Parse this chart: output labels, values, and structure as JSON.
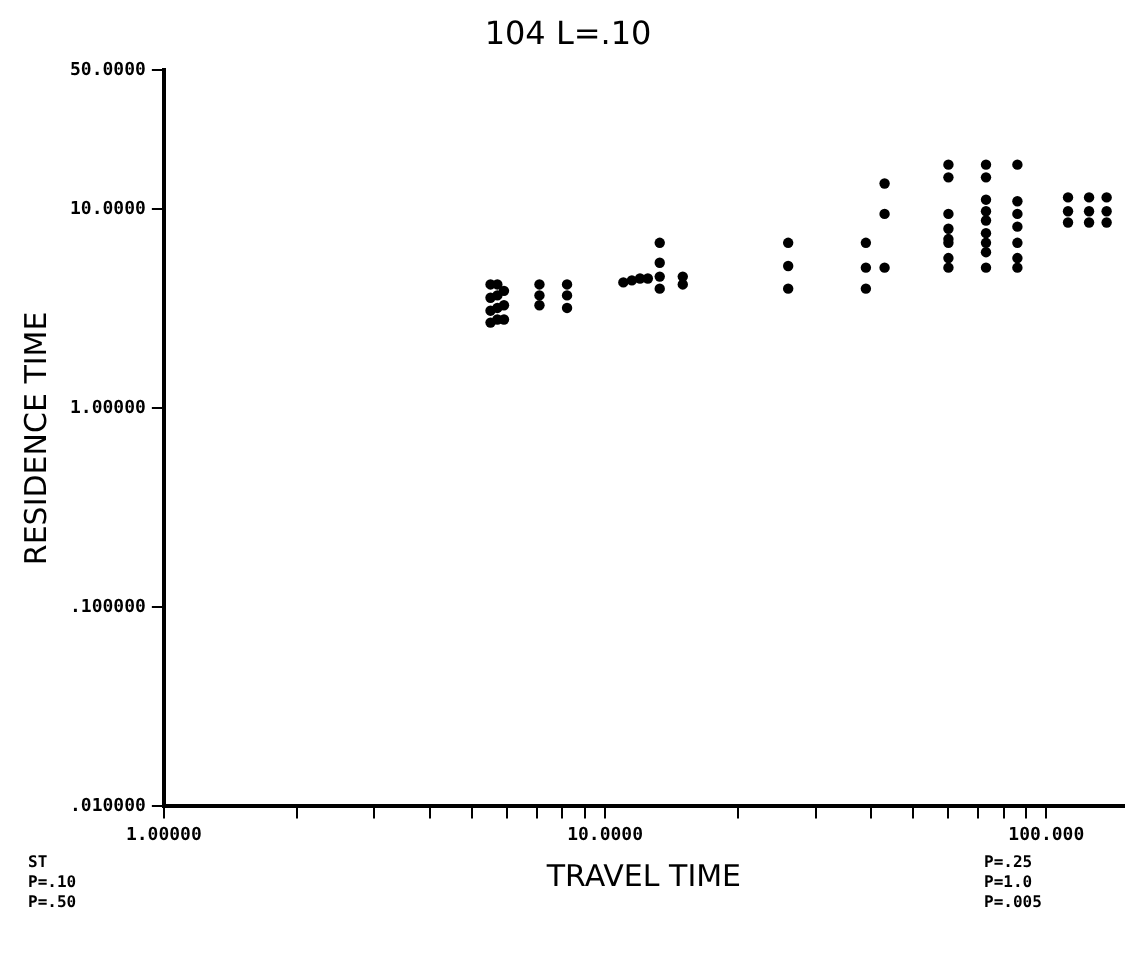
{
  "chart_data": {
    "type": "scatter",
    "title": "104 L=.10",
    "xlabel": "TRAVEL TIME",
    "ylabel": "RESIDENCE TIME",
    "log": "xy",
    "grid": false,
    "marker": "circle",
    "legend": false,
    "xlim": [
      1,
      150
    ],
    "ylim": [
      0.01,
      50
    ],
    "xticks": [
      {
        "value": 1,
        "label": "1.00000"
      },
      {
        "value": 2,
        "label": null
      },
      {
        "value": 3,
        "label": null
      },
      {
        "value": 4,
        "label": null
      },
      {
        "value": 5,
        "label": null
      },
      {
        "value": 6,
        "label": null
      },
      {
        "value": 7,
        "label": null
      },
      {
        "value": 8,
        "label": null
      },
      {
        "value": 9,
        "label": null
      },
      {
        "value": 10,
        "label": "10.0000"
      },
      {
        "value": 20,
        "label": null
      },
      {
        "value": 30,
        "label": null
      },
      {
        "value": 40,
        "label": null
      },
      {
        "value": 50,
        "label": null
      },
      {
        "value": 60,
        "label": null
      },
      {
        "value": 70,
        "label": null
      },
      {
        "value": 80,
        "label": null
      },
      {
        "value": 90,
        "label": null
      },
      {
        "value": 100,
        "label": "100.000"
      }
    ],
    "yticks": [
      {
        "value": 0.01,
        "label": ".010000"
      },
      {
        "value": 0.1,
        "label": ".100000"
      },
      {
        "value": 1,
        "label": "1.00000"
      },
      {
        "value": 10,
        "label": "10.0000"
      },
      {
        "value": 50,
        "label": "50.0000"
      }
    ],
    "annotations": [
      "ST",
      "P=.10",
      "P=.50",
      "P=.25",
      "P=1.0",
      "P=.005"
    ],
    "series": [
      {
        "color": "#000000",
        "x": [
          5.5,
          5.5,
          5.5,
          5.5,
          5.7,
          5.7,
          5.7,
          5.7,
          5.9,
          5.9,
          5.9,
          7.1,
          7.1,
          7.1,
          8.2,
          8.2,
          8.2,
          11,
          11.5,
          12,
          12.5,
          13.3,
          13.3,
          13.3,
          13.3,
          15,
          15,
          26,
          26,
          26,
          39,
          39,
          39,
          43,
          43,
          43,
          60,
          60,
          60,
          60,
          60,
          60,
          60,
          60,
          73,
          73,
          73,
          73,
          73,
          73,
          73,
          73,
          73,
          86,
          86,
          86,
          86,
          86,
          86,
          86,
          112,
          112,
          112,
          125,
          125,
          125,
          137,
          137,
          137
        ],
        "values": [
          2.7,
          3.1,
          3.6,
          4.2,
          2.8,
          3.2,
          3.7,
          4.2,
          2.8,
          3.3,
          3.9,
          3.3,
          3.7,
          4.2,
          3.2,
          3.7,
          4.2,
          4.3,
          4.4,
          4.5,
          4.5,
          6.8,
          5.4,
          4.6,
          4.0,
          4.2,
          4.6,
          6.8,
          5.2,
          4.0,
          6.8,
          5.1,
          4.0,
          5.1,
          9.5,
          13.5,
          16.8,
          14.5,
          9.5,
          8.0,
          7.1,
          6.8,
          5.7,
          5.1,
          16.8,
          14.5,
          11.2,
          9.8,
          8.8,
          7.6,
          6.8,
          6.1,
          5.1,
          16.8,
          11.0,
          9.5,
          8.2,
          6.8,
          5.7,
          5.1,
          11.5,
          9.8,
          8.6,
          11.5,
          9.8,
          8.6,
          11.5,
          9.8,
          8.6
        ]
      }
    ]
  }
}
